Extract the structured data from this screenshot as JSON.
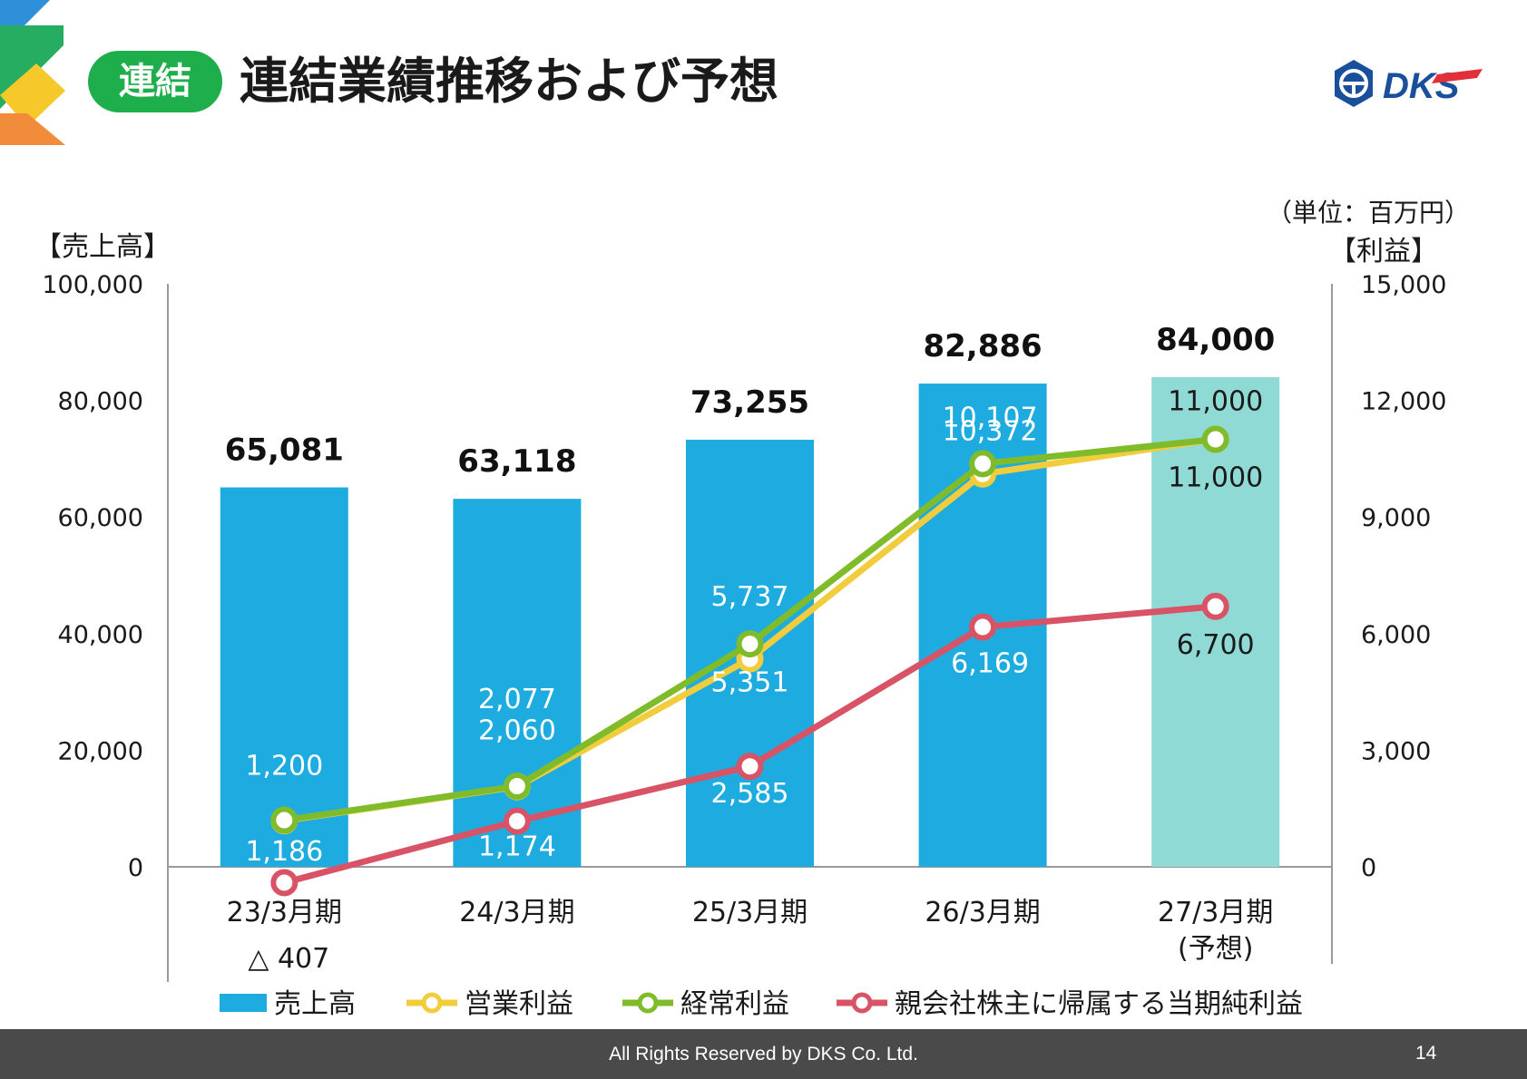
{
  "header": {
    "badge": "連結",
    "title": "連結業績推移および予想"
  },
  "logo": {
    "text": "DKS",
    "colors": {
      "blue": "#1a4f9c",
      "red": "#e2303b"
    }
  },
  "footer": {
    "copyright": "All Rights Reserved by DKS Co. Ltd.",
    "page_number": "14"
  },
  "chart_data": {
    "type": "bar",
    "combo": "bar + line (dual axis)",
    "unit_note": "（単位：百万円）",
    "left_axis_label": "【売上高】",
    "right_axis_label": "【利益】",
    "categories": [
      "23/3月期",
      "24/3月期",
      "25/3月期",
      "26/3月期",
      "27/3月期"
    ],
    "category_sublabels": [
      "",
      "",
      "",
      "",
      "(予想)"
    ],
    "left_axis": {
      "min": 0,
      "max": 100000,
      "ticks": [
        "0",
        "20,000",
        "40,000",
        "60,000",
        "80,000",
        "100,000"
      ]
    },
    "right_axis": {
      "min": 0,
      "max": 15000,
      "ticks": [
        "0",
        "3,000",
        "6,000",
        "9,000",
        "12,000",
        "15,000"
      ]
    },
    "bars": {
      "name": "売上高",
      "values": [
        65081,
        63118,
        73255,
        82886,
        84000
      ],
      "labels": [
        "65,081",
        "63,118",
        "73,255",
        "82,886",
        "84,000"
      ],
      "color": "#1eace0",
      "forecast_color": "#8fdad4"
    },
    "lines": [
      {
        "name": "営業利益",
        "values": [
          1186,
          2060,
          5351,
          10107,
          11000
        ],
        "labels": [
          "1,186",
          "2,060",
          "5,351",
          "10,107",
          "11,000"
        ],
        "color": "#f1cd3d"
      },
      {
        "name": "経常利益",
        "values": [
          1200,
          2077,
          5737,
          10372,
          11000
        ],
        "labels": [
          "1,200",
          "2,077",
          "5,737",
          "10,372",
          "11,000"
        ],
        "color": "#7fbb2b"
      },
      {
        "name": "親会社株主に帰属する当期純利益",
        "values": [
          -407,
          1174,
          2585,
          6169,
          6700
        ],
        "labels": [
          "△ 407",
          "1,174",
          "2,585",
          "6,169",
          "6,700"
        ],
        "color": "#d95366"
      }
    ],
    "legend_position": "bottom"
  }
}
